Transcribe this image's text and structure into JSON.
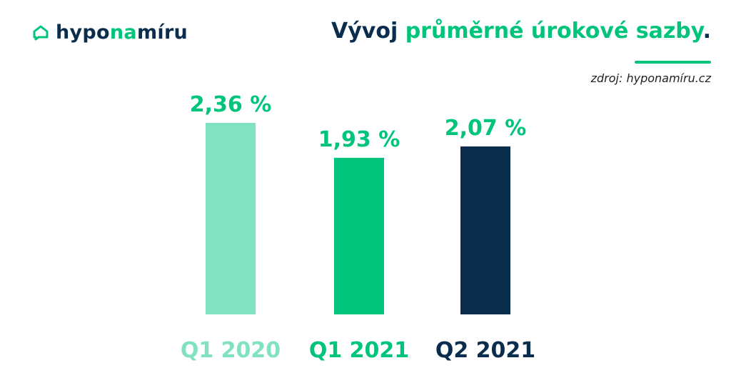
{
  "brand": {
    "name_part1": "hypo",
    "name_part2": "na",
    "name_part3": "míru",
    "logo_icon": "house-chat-icon"
  },
  "header": {
    "title_part1": "Vývoj ",
    "title_part2": "průměrné úrokové sazby",
    "title_part3": "."
  },
  "source": "zdroj: hyponamíru.cz",
  "colors": {
    "navy": "#0b2d4d",
    "green": "#00c47c",
    "light_green": "#80e2c1"
  },
  "chart_data": {
    "type": "bar",
    "categories": [
      "Q1 2020",
      "Q1 2021",
      "Q2 2021"
    ],
    "values": [
      2.36,
      1.93,
      2.07
    ],
    "value_labels": [
      "2,36 %",
      "1,93 %",
      "2,07 %"
    ],
    "bar_colors": [
      "#80e2c1",
      "#00c47c",
      "#0b2d4d"
    ],
    "label_colors": [
      "#80e2c1",
      "#00c47c",
      "#0b2d4d"
    ],
    "value_label_color": "#00c47c",
    "ylim": [
      0,
      2.36
    ],
    "grid": false,
    "legend": "none"
  }
}
